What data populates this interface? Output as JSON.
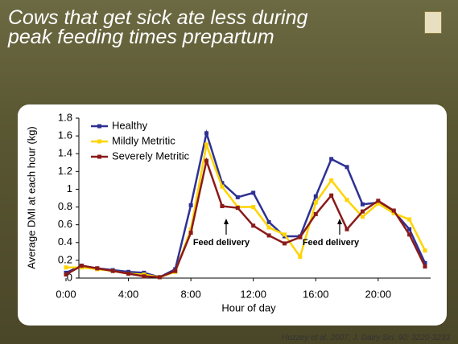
{
  "chart_data": {
    "type": "line",
    "title": "Cows that get sick ate less during peak feeding times prepartum",
    "x_label": "Hour of day",
    "y_label": "Average DMI at each hour (kg)",
    "x": [
      0,
      1,
      2,
      3,
      4,
      5,
      6,
      7,
      8,
      9,
      10,
      11,
      12,
      13,
      14,
      15,
      16,
      17,
      18,
      19,
      20,
      21,
      22,
      23
    ],
    "xlim": [
      0,
      23
    ],
    "xticks": [
      {
        "value": 0,
        "label": "0:00"
      },
      {
        "value": 4,
        "label": "4:00"
      },
      {
        "value": 8,
        "label": "8:00"
      },
      {
        "value": 12,
        "label": "12:00"
      },
      {
        "value": 16,
        "label": "16:00"
      },
      {
        "value": 20,
        "label": "20:00"
      }
    ],
    "ylim": [
      0,
      1.8
    ],
    "yticks": [
      0,
      0.2,
      0.4,
      0.6,
      0.8,
      1,
      1.2,
      1.4,
      1.6,
      1.8
    ],
    "legend": "upper left",
    "series": [
      {
        "name": "Healthy",
        "color": "#2e3192",
        "values": [
          0.06,
          0.14,
          0.11,
          0.09,
          0.07,
          0.06,
          0.01,
          0.1,
          0.82,
          1.63,
          1.07,
          0.91,
          0.96,
          0.63,
          0.47,
          0.47,
          0.92,
          1.34,
          1.25,
          0.83,
          0.85,
          0.75,
          0.55,
          0.17
        ]
      },
      {
        "name": "Mildly Metritic",
        "color": "#ffd400",
        "values": [
          0.12,
          0.12,
          0.1,
          0.08,
          0.05,
          0.04,
          0.01,
          0.07,
          0.55,
          1.5,
          1.03,
          0.8,
          0.8,
          0.57,
          0.49,
          0.24,
          0.85,
          1.1,
          0.88,
          0.69,
          0.84,
          0.73,
          0.66,
          0.31
        ]
      },
      {
        "name": "Severely Metritic",
        "color": "#8b1a1a",
        "values": [
          0.04,
          0.14,
          0.11,
          0.08,
          0.05,
          0.02,
          0.01,
          0.08,
          0.51,
          1.32,
          0.81,
          0.79,
          0.59,
          0.48,
          0.39,
          0.46,
          0.72,
          0.93,
          0.55,
          0.75,
          0.87,
          0.76,
          0.49,
          0.13
        ]
      }
    ],
    "annotations": [
      "Feed delivery",
      "Feed delivery"
    ],
    "source": "Huzzey et al. 2007, J. Dairy Sci. 90: 3220-3233"
  }
}
